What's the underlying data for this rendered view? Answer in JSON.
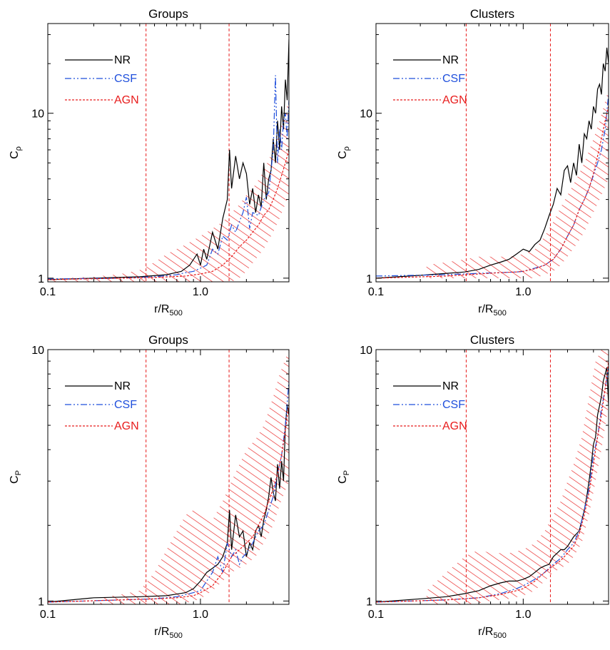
{
  "figure": {
    "background": "#ffffff"
  },
  "colors": {
    "NR": "#000000",
    "CSF": "#1f4fdc",
    "AGN": "#e81d1d",
    "hatch": "#e81d1d"
  },
  "legend_labels": [
    "NR",
    "CSF",
    "AGN"
  ],
  "chart_data": [
    {
      "type": "line",
      "title": "Groups",
      "xlabel": "r/R",
      "xlabel_sub": "500",
      "ylabel": "C",
      "ylabel_sub": "ρ",
      "xscale": "log",
      "yscale": "log",
      "xlim": [
        0.1,
        3.8
      ],
      "ylim": [
        0.95,
        35
      ],
      "xticks": [
        0.1,
        1.0
      ],
      "xtick_labels": [
        "0.1",
        "1.0"
      ],
      "yticks": [
        1,
        10
      ],
      "ytick_labels": [
        "1",
        "10"
      ],
      "vlines": [
        0.44,
        1.54
      ],
      "legend": "top-left",
      "series": [
        {
          "name": "NR",
          "style": "solid",
          "x": [
            0.1,
            0.2,
            0.4,
            0.6,
            0.75,
            0.85,
            0.95,
            1.0,
            1.05,
            1.1,
            1.2,
            1.3,
            1.4,
            1.5,
            1.55,
            1.6,
            1.7,
            1.8,
            1.9,
            2.0,
            2.1,
            2.2,
            2.3,
            2.4,
            2.5,
            2.6,
            2.7,
            2.8,
            2.9,
            3.0,
            3.1,
            3.2,
            3.3,
            3.4,
            3.5,
            3.6,
            3.7,
            3.8
          ],
          "y": [
            0.98,
            1.0,
            1.02,
            1.05,
            1.1,
            1.2,
            1.4,
            1.2,
            1.5,
            1.3,
            1.9,
            1.5,
            2.3,
            3.0,
            6.0,
            3.5,
            5.5,
            4.0,
            5.0,
            4.3,
            2.8,
            3.5,
            2.5,
            3.2,
            2.7,
            5.0,
            3.0,
            4.0,
            4.5,
            7.0,
            5.0,
            9.0,
            6.0,
            11.0,
            8.0,
            16.0,
            12.0,
            28.0
          ]
        },
        {
          "name": "CSF",
          "style": "dashdotdot",
          "x": [
            0.1,
            0.3,
            0.5,
            0.7,
            0.8,
            0.9,
            1.0,
            1.1,
            1.2,
            1.3,
            1.4,
            1.5,
            1.6,
            1.7,
            1.8,
            1.9,
            2.0,
            2.1,
            2.2,
            2.4,
            2.6,
            2.8,
            2.9,
            3.0,
            3.1,
            3.2,
            3.3,
            3.4,
            3.5,
            3.6,
            3.7,
            3.8
          ],
          "y": [
            0.99,
            1.0,
            1.02,
            1.05,
            1.08,
            1.1,
            1.15,
            1.2,
            1.5,
            1.4,
            1.8,
            1.7,
            2.1,
            1.9,
            2.2,
            2.5,
            3.1,
            2.0,
            2.5,
            2.4,
            3.0,
            3.3,
            4.5,
            6.0,
            17.0,
            5.0,
            8.0,
            6.0,
            9.0,
            10.0,
            7.0,
            12.0
          ]
        },
        {
          "name": "AGN",
          "style": "dashed",
          "x": [
            0.1,
            0.3,
            0.5,
            0.8,
            1.0,
            1.2,
            1.4,
            1.6,
            1.8,
            2.0,
            2.2,
            2.4,
            2.6,
            2.8,
            3.0,
            3.2,
            3.4,
            3.6,
            3.8
          ],
          "y": [
            0.98,
            1.0,
            1.01,
            1.03,
            1.06,
            1.1,
            1.2,
            1.35,
            1.55,
            1.7,
            1.9,
            2.1,
            2.4,
            2.6,
            3.0,
            3.5,
            4.2,
            5.0,
            6.0
          ]
        }
      ],
      "hatch_band": {
        "x": [
          0.1,
          0.2,
          0.3,
          0.4,
          0.5,
          0.6,
          0.8,
          1.0,
          1.2,
          1.4,
          1.6,
          1.8,
          2.0,
          2.3,
          2.6,
          3.0,
          3.3,
          3.8
        ],
        "lo": [
          0.95,
          0.95,
          0.95,
          0.95,
          0.95,
          0.95,
          0.95,
          0.95,
          0.95,
          0.95,
          0.95,
          1.0,
          1.1,
          1.3,
          1.5,
          1.9,
          2.3,
          3.2
        ],
        "hi": [
          0.99,
          1.02,
          1.06,
          1.12,
          1.25,
          1.4,
          1.6,
          1.8,
          2.0,
          2.2,
          2.5,
          2.8,
          3.2,
          3.7,
          4.5,
          6.0,
          8.0,
          12.0
        ]
      }
    },
    {
      "type": "line",
      "title": "Clusters",
      "xlabel": "r/R",
      "xlabel_sub": "500",
      "ylabel": "C",
      "ylabel_sub": "ρ",
      "xscale": "log",
      "yscale": "log",
      "xlim": [
        0.1,
        3.8
      ],
      "ylim": [
        0.95,
        35
      ],
      "xticks": [
        0.1,
        1.0
      ],
      "xtick_labels": [
        "0.1",
        "1.0"
      ],
      "yticks": [
        1,
        10
      ],
      "ytick_labels": [
        "1",
        "10"
      ],
      "vlines": [
        0.41,
        1.53
      ],
      "legend": "top-left",
      "series": [
        {
          "name": "NR",
          "style": "solid",
          "x": [
            0.1,
            0.2,
            0.4,
            0.5,
            0.6,
            0.7,
            0.8,
            0.9,
            1.0,
            1.1,
            1.2,
            1.3,
            1.4,
            1.5,
            1.6,
            1.7,
            1.8,
            1.9,
            2.0,
            2.1,
            2.2,
            2.3,
            2.4,
            2.5,
            2.6,
            2.7,
            2.8,
            2.9,
            3.0,
            3.1,
            3.2,
            3.3,
            3.4,
            3.5,
            3.6,
            3.7,
            3.8
          ],
          "y": [
            1.0,
            1.04,
            1.09,
            1.13,
            1.2,
            1.25,
            1.3,
            1.4,
            1.5,
            1.45,
            1.6,
            1.7,
            2.0,
            2.4,
            2.8,
            3.5,
            3.2,
            4.5,
            4.8,
            3.8,
            5.0,
            4.2,
            6.5,
            5.0,
            7.5,
            7.0,
            9.0,
            8.0,
            11.0,
            10.0,
            14.0,
            15.0,
            13.0,
            20.0,
            18.0,
            25.0,
            20.0
          ]
        },
        {
          "name": "CSF",
          "style": "dashdotdot",
          "x": [
            0.1,
            0.3,
            0.5,
            0.7,
            0.9,
            1.0,
            1.2,
            1.4,
            1.6,
            1.8,
            2.0,
            2.2,
            2.4,
            2.6,
            2.8,
            3.0,
            3.2,
            3.4,
            3.6,
            3.8
          ],
          "y": [
            1.03,
            1.05,
            1.07,
            1.08,
            1.09,
            1.1,
            1.15,
            1.2,
            1.3,
            1.5,
            1.8,
            2.1,
            2.6,
            3.0,
            3.5,
            4.2,
            5.0,
            6.0,
            8.0,
            13.0
          ]
        },
        {
          "name": "AGN",
          "style": "dashed",
          "x": [
            0.1,
            0.3,
            0.5,
            0.7,
            0.9,
            1.0,
            1.2,
            1.4,
            1.6,
            1.8,
            2.0,
            2.2,
            2.4,
            2.6,
            2.8,
            3.0,
            3.2,
            3.4,
            3.6,
            3.8
          ],
          "y": [
            1.0,
            1.03,
            1.06,
            1.08,
            1.09,
            1.1,
            1.14,
            1.2,
            1.3,
            1.5,
            1.8,
            2.1,
            2.6,
            3.0,
            3.5,
            4.3,
            5.5,
            7.0,
            9.0,
            11.0
          ]
        }
      ],
      "hatch_band": {
        "x": [
          0.22,
          0.3,
          0.4,
          0.5,
          0.6,
          0.8,
          1.0,
          1.2,
          1.4,
          1.6,
          1.8,
          2.0,
          2.3,
          2.6,
          3.0,
          3.3,
          3.8
        ],
        "lo": [
          1.0,
          1.0,
          1.0,
          1.0,
          1.0,
          1.0,
          1.0,
          1.0,
          1.05,
          1.1,
          1.2,
          1.35,
          1.6,
          1.9,
          2.5,
          3.0,
          4.0
        ],
        "hi": [
          1.2,
          1.25,
          1.3,
          1.35,
          1.35,
          1.35,
          1.4,
          1.5,
          1.8,
          2.2,
          2.7,
          3.2,
          4.0,
          5.0,
          7.0,
          9.0,
          14.0
        ]
      }
    },
    {
      "type": "line",
      "title": "Groups",
      "xlabel": "r/R",
      "xlabel_sub": "500",
      "ylabel": "C",
      "ylabel_sub": "P",
      "xscale": "log",
      "yscale": "log",
      "xlim": [
        0.1,
        3.8
      ],
      "ylim": [
        0.97,
        10
      ],
      "xticks": [
        0.1,
        1.0
      ],
      "xtick_labels": [
        "0.1",
        "1.0"
      ],
      "yticks": [
        1,
        10
      ],
      "ytick_labels": [
        "1",
        "10"
      ],
      "vlines": [
        0.44,
        1.54
      ],
      "legend": "top-left",
      "series": [
        {
          "name": "NR",
          "style": "solid",
          "x": [
            0.1,
            0.2,
            0.4,
            0.6,
            0.8,
            0.9,
            1.0,
            1.1,
            1.2,
            1.3,
            1.4,
            1.5,
            1.55,
            1.6,
            1.7,
            1.8,
            1.9,
            2.0,
            2.1,
            2.2,
            2.3,
            2.4,
            2.5,
            2.6,
            2.7,
            2.8,
            2.9,
            3.0,
            3.1,
            3.2,
            3.3,
            3.4,
            3.5,
            3.6,
            3.7,
            3.8
          ],
          "y": [
            0.99,
            1.03,
            1.04,
            1.05,
            1.08,
            1.12,
            1.2,
            1.3,
            1.35,
            1.4,
            1.5,
            1.7,
            2.3,
            1.6,
            2.2,
            1.8,
            1.9,
            1.5,
            1.7,
            1.6,
            1.9,
            2.0,
            1.8,
            2.1,
            2.3,
            2.6,
            3.1,
            2.7,
            2.5,
            3.5,
            2.8,
            3.6,
            3.0,
            5.0,
            6.0,
            5.5
          ]
        },
        {
          "name": "CSF",
          "style": "dashdotdot",
          "x": [
            0.1,
            0.3,
            0.5,
            0.7,
            0.9,
            1.0,
            1.1,
            1.2,
            1.3,
            1.4,
            1.5,
            1.6,
            1.7,
            1.8,
            1.9,
            2.0,
            2.2,
            2.4,
            2.6,
            2.8,
            3.0,
            3.2,
            3.4,
            3.6,
            3.8
          ],
          "y": [
            0.99,
            1.01,
            1.02,
            1.04,
            1.08,
            1.1,
            1.2,
            1.3,
            1.5,
            1.3,
            1.7,
            1.5,
            1.6,
            1.4,
            1.5,
            1.55,
            1.7,
            1.9,
            2.0,
            2.3,
            2.6,
            3.2,
            3.8,
            5.0,
            7.5
          ]
        },
        {
          "name": "AGN",
          "style": "dashed",
          "x": [
            0.1,
            0.3,
            0.5,
            0.7,
            0.9,
            1.0,
            1.2,
            1.4,
            1.6,
            1.8,
            2.0,
            2.2,
            2.4,
            2.6,
            2.8,
            3.0,
            3.2,
            3.4,
            3.6,
            3.8
          ],
          "y": [
            0.99,
            1.01,
            1.02,
            1.03,
            1.05,
            1.08,
            1.15,
            1.3,
            1.5,
            1.6,
            1.7,
            1.8,
            2.0,
            2.2,
            2.5,
            2.8,
            3.2,
            3.8,
            4.8,
            6.0
          ]
        }
      ],
      "hatch_band": {
        "x": [
          0.22,
          0.3,
          0.4,
          0.5,
          0.6,
          0.7,
          0.8,
          0.9,
          1.0,
          1.2,
          1.4,
          1.6,
          1.8,
          2.0,
          2.3,
          2.6,
          3.0,
          3.3,
          3.8
        ],
        "lo": [
          0.97,
          0.97,
          0.97,
          0.97,
          0.97,
          0.97,
          0.98,
          1.0,
          1.02,
          1.1,
          1.2,
          1.3,
          1.35,
          1.4,
          1.5,
          1.7,
          2.0,
          2.4,
          3.0
        ],
        "hi": [
          1.03,
          1.06,
          1.1,
          1.3,
          1.6,
          1.9,
          2.2,
          2.3,
          2.2,
          2.1,
          2.5,
          3.0,
          3.5,
          4.0,
          4.4,
          5.0,
          6.5,
          8.0,
          10.0
        ]
      }
    },
    {
      "type": "line",
      "title": "Clusters",
      "xlabel": "r/R",
      "xlabel_sub": "500",
      "ylabel": "C",
      "ylabel_sub": "P",
      "xscale": "log",
      "yscale": "log",
      "xlim": [
        0.1,
        3.8
      ],
      "ylim": [
        0.97,
        10
      ],
      "xticks": [
        0.1,
        1.0
      ],
      "xtick_labels": [
        "0.1",
        "1.0"
      ],
      "yticks": [
        1,
        10
      ],
      "ytick_labels": [
        "1",
        "10"
      ],
      "vlines": [
        0.41,
        1.53
      ],
      "legend": "top-left",
      "series": [
        {
          "name": "NR",
          "style": "solid",
          "x": [
            0.1,
            0.2,
            0.3,
            0.4,
            0.5,
            0.6,
            0.7,
            0.8,
            0.9,
            1.0,
            1.1,
            1.2,
            1.3,
            1.4,
            1.5,
            1.6,
            1.7,
            1.8,
            1.9,
            2.0,
            2.2,
            2.4,
            2.6,
            2.7,
            2.8,
            2.9,
            3.0,
            3.1,
            3.2,
            3.3,
            3.4,
            3.5,
            3.6,
            3.7,
            3.8
          ],
          "y": [
            0.99,
            1.02,
            1.04,
            1.07,
            1.1,
            1.15,
            1.18,
            1.2,
            1.2,
            1.22,
            1.25,
            1.3,
            1.35,
            1.38,
            1.4,
            1.5,
            1.55,
            1.6,
            1.6,
            1.65,
            1.8,
            1.9,
            2.3,
            2.6,
            3.0,
            3.5,
            4.2,
            4.5,
            5.5,
            6.0,
            6.5,
            7.5,
            8.0,
            8.5,
            6.0
          ]
        },
        {
          "name": "CSF",
          "style": "dashdotdot",
          "x": [
            0.1,
            0.3,
            0.5,
            0.7,
            0.9,
            1.0,
            1.2,
            1.4,
            1.6,
            1.8,
            2.0,
            2.2,
            2.4,
            2.6,
            2.8,
            3.0,
            3.2,
            3.4,
            3.6,
            3.8
          ],
          "y": [
            0.99,
            1.01,
            1.03,
            1.07,
            1.12,
            1.15,
            1.22,
            1.3,
            1.4,
            1.48,
            1.6,
            1.7,
            1.9,
            2.3,
            2.8,
            3.8,
            4.5,
            5.8,
            7.0,
            8.5
          ]
        },
        {
          "name": "AGN",
          "style": "dashed",
          "x": [
            0.1,
            0.3,
            0.5,
            0.7,
            0.9,
            1.0,
            1.2,
            1.4,
            1.6,
            1.8,
            2.0,
            2.2,
            2.4,
            2.6,
            2.8,
            3.0,
            3.2,
            3.4,
            3.6,
            3.8
          ],
          "y": [
            0.99,
            1.01,
            1.03,
            1.06,
            1.1,
            1.12,
            1.2,
            1.3,
            1.38,
            1.45,
            1.55,
            1.65,
            1.85,
            2.2,
            2.7,
            3.5,
            4.5,
            5.5,
            7.0,
            9.0
          ]
        }
      ],
      "hatch_band": {
        "x": [
          0.22,
          0.3,
          0.4,
          0.5,
          0.6,
          0.8,
          1.0,
          1.2,
          1.4,
          1.6,
          1.8,
          2.0,
          2.2,
          2.5,
          2.8,
          3.1,
          3.4,
          3.8
        ],
        "lo": [
          0.97,
          0.97,
          0.97,
          0.98,
          1.0,
          1.02,
          1.05,
          1.1,
          1.2,
          1.3,
          1.35,
          1.4,
          1.5,
          1.7,
          2.2,
          3.0,
          4.0,
          6.0
        ],
        "hi": [
          1.1,
          1.3,
          1.5,
          1.6,
          1.55,
          1.55,
          1.6,
          1.7,
          1.9,
          2.2,
          2.5,
          3.0,
          3.5,
          4.5,
          6.5,
          9.0,
          10.0,
          10.0
        ]
      }
    }
  ]
}
